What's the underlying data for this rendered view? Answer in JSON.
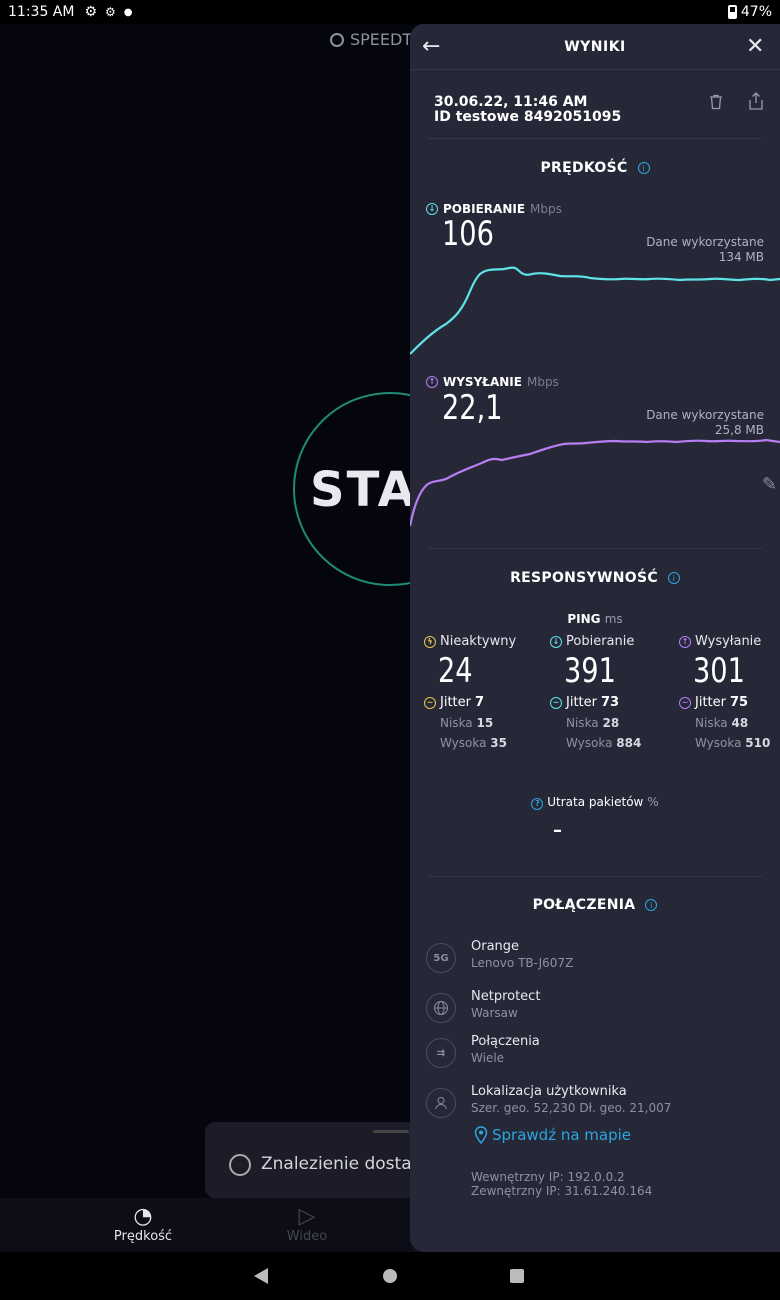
{
  "status_bar": {
    "time": "11:35 AM",
    "battery": "47%"
  },
  "background": {
    "logo": "SPEEDT",
    "start": "STA",
    "finding": "Znalezienie dostaw",
    "tabs": [
      {
        "label": "Prędkość"
      },
      {
        "label": "Wideo"
      }
    ]
  },
  "panel": {
    "title": "WYNIKI",
    "date": "30.06.22, 11:46 AM",
    "test_id": "ID testowe 8492051095",
    "speed": {
      "title": "PRĘDKOŚĆ",
      "download": {
        "label": "POBIERANIE",
        "unit": "Mbps",
        "value": "106",
        "data_used_label": "Dane wykorzystane",
        "data_used": "134 MB",
        "color": "#5ee3e6"
      },
      "upload": {
        "label": "WYSYŁANIE",
        "unit": "Mbps",
        "value": "22,1",
        "data_used_label": "Dane wykorzystane",
        "data_used": "25,8 MB",
        "color": "#b67ef2"
      }
    },
    "responsiveness": {
      "title": "RESPONSYWNOŚĆ",
      "ping_label": "PING",
      "ping_unit": "ms",
      "columns": [
        {
          "label": "Nieaktywny",
          "value": "24",
          "jitter_label": "Jitter",
          "jitter": "7",
          "low_label": "Niska",
          "low": "15",
          "high_label": "Wysoka",
          "high": "35"
        },
        {
          "label": "Pobieranie",
          "value": "391",
          "jitter_label": "Jitter",
          "jitter": "73",
          "low_label": "Niska",
          "low": "28",
          "high_label": "Wysoka",
          "high": "884"
        },
        {
          "label": "Wysyłanie",
          "value": "301",
          "jitter_label": "Jitter",
          "jitter": "75",
          "low_label": "Niska",
          "low": "48",
          "high_label": "Wysoka",
          "high": "510"
        }
      ],
      "packet_loss_label": "Utrata pakietów",
      "packet_loss_unit": "%",
      "packet_loss_value": "–"
    },
    "connections": {
      "title": "POŁĄCZENIA",
      "items": [
        {
          "icon": "5G",
          "title": "Orange",
          "subtitle": "Lenovo TB-J607Z"
        },
        {
          "icon": "globe",
          "title": "Netprotect",
          "subtitle": "Warsaw"
        },
        {
          "icon": "connections",
          "title": "Połączenia",
          "subtitle": "Wiele"
        },
        {
          "icon": "user",
          "title": "Lokalizacja użytkownika",
          "subtitle": "Szer. geo. 52,230 Dł. geo. 21,007"
        }
      ],
      "map_link": "Sprawdź na mapie",
      "internal_ip": "Wewnętrzny IP: 192.0.0.2",
      "external_ip": "Zewnętrzny IP: 31.61.240.164"
    }
  }
}
